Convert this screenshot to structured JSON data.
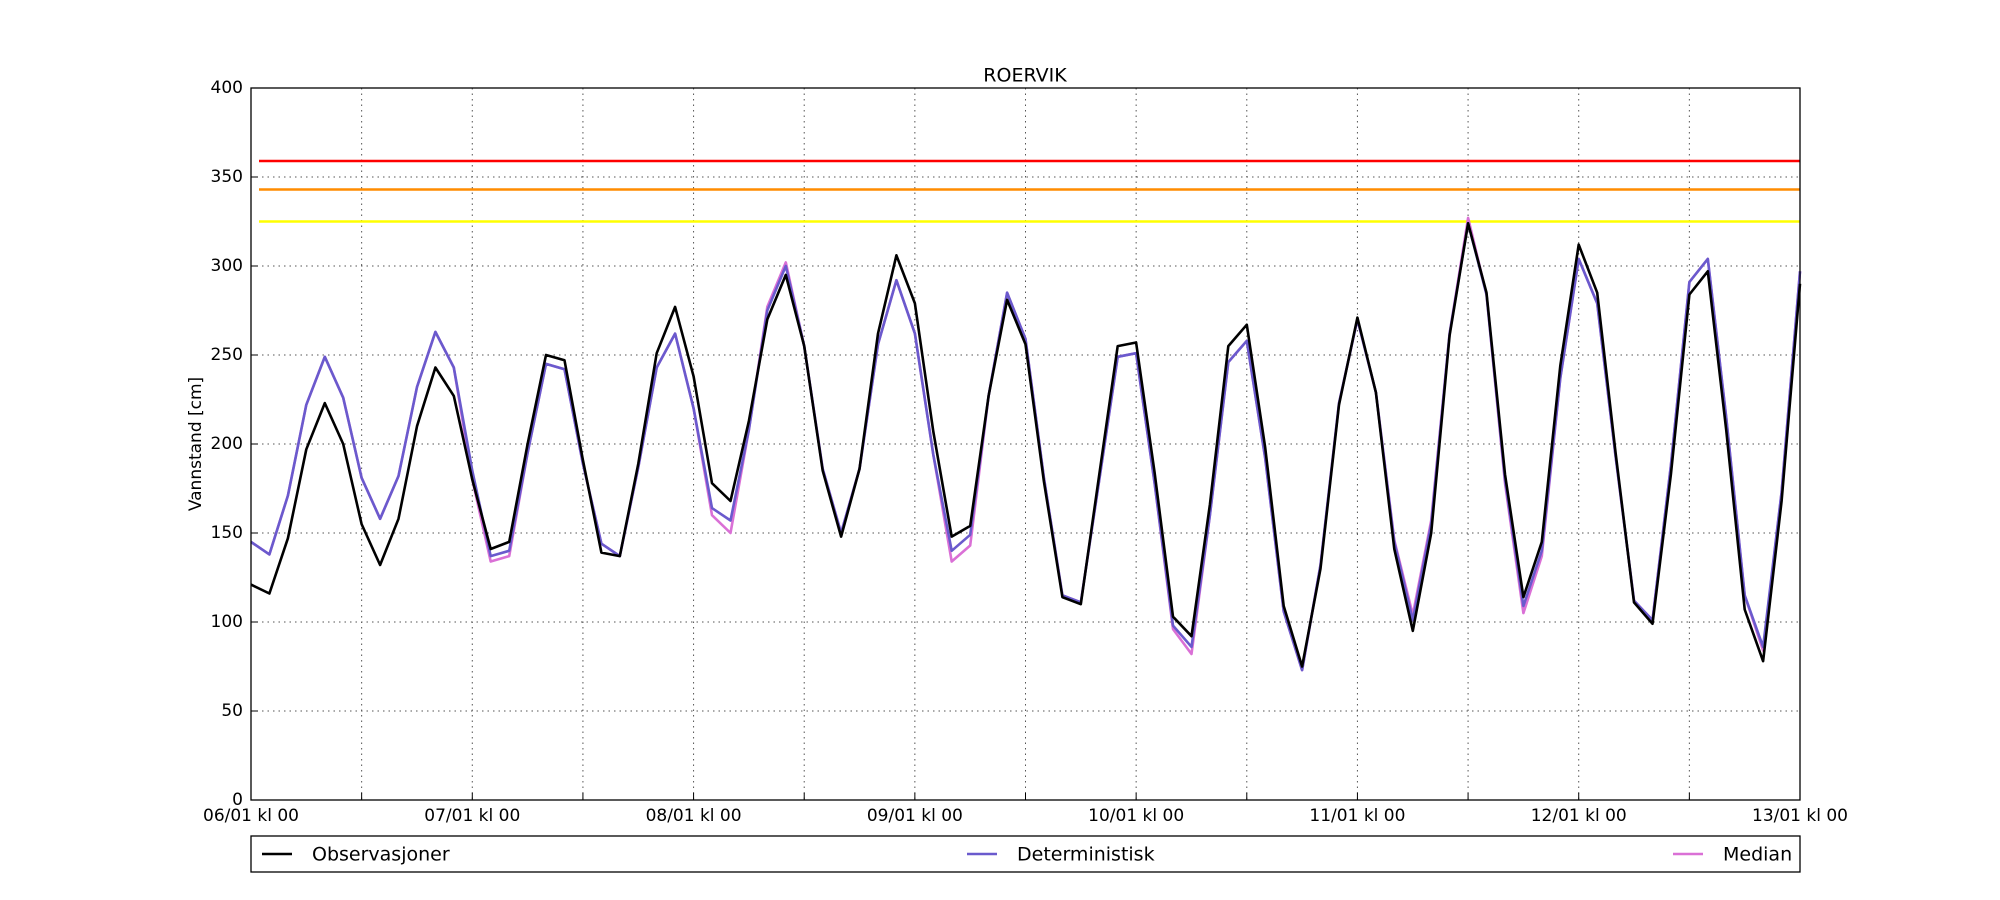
{
  "chart_data": {
    "type": "line",
    "title": "ROERVIK",
    "ylabel": "Vannstand [cm]",
    "x": [
      0,
      2,
      4,
      6,
      8,
      10,
      12,
      14,
      16,
      18,
      20,
      22,
      24,
      26,
      28,
      30,
      32,
      34,
      36,
      38,
      40,
      42,
      44,
      46,
      48,
      50,
      52,
      54,
      56,
      58,
      60,
      62,
      64,
      66,
      68,
      70,
      72,
      74,
      76,
      78,
      80,
      82,
      84,
      86,
      88,
      90,
      92,
      94,
      96,
      98,
      100,
      102,
      104,
      106,
      108,
      110,
      112,
      114,
      116,
      118,
      120,
      122,
      124,
      126,
      128,
      130,
      132,
      134,
      136,
      138,
      140,
      142,
      144,
      146,
      148,
      150,
      152,
      154,
      156,
      158,
      160,
      162,
      164,
      166,
      168
    ],
    "xlim": [
      0,
      168
    ],
    "xticks": [
      {
        "value": 0,
        "label": "06/01 kl 00"
      },
      {
        "value": 12,
        "label": null
      },
      {
        "value": 24,
        "label": "07/01 kl 00"
      },
      {
        "value": 36,
        "label": null
      },
      {
        "value": 48,
        "label": "08/01 kl 00"
      },
      {
        "value": 60,
        "label": null
      },
      {
        "value": 72,
        "label": "09/01 kl 00"
      },
      {
        "value": 84,
        "label": null
      },
      {
        "value": 96,
        "label": "10/01 kl 00"
      },
      {
        "value": 108,
        "label": null
      },
      {
        "value": 120,
        "label": "11/01 kl 00"
      },
      {
        "value": 132,
        "label": null
      },
      {
        "value": 144,
        "label": "12/01 kl 00"
      },
      {
        "value": 156,
        "label": null
      },
      {
        "value": 168,
        "label": "13/01 kl 00"
      }
    ],
    "ylim": [
      0,
      400
    ],
    "yticks": [
      0,
      50,
      100,
      150,
      200,
      250,
      300,
      350,
      400
    ],
    "grid": true,
    "reference_lines": [
      {
        "value": 359,
        "color": "#ff0000"
      },
      {
        "value": 343,
        "color": "#ff8c00"
      },
      {
        "value": 325,
        "color": "#ffff00"
      }
    ],
    "series": [
      {
        "name": "Observasjoner",
        "color": "#000000",
        "values": [
          121,
          116,
          147,
          197,
          223,
          200,
          155,
          132,
          158,
          210,
          243,
          227,
          180,
          141,
          145,
          200,
          250,
          247,
          191,
          139,
          137,
          189,
          251,
          277,
          238,
          178,
          168,
          213,
          270,
          295,
          255,
          185,
          148,
          186,
          262,
          306,
          279,
          207,
          148,
          154,
          227,
          281,
          256,
          179,
          114,
          110,
          183,
          255,
          257,
          184,
          103,
          92,
          166,
          255,
          267,
          198,
          109,
          75,
          130,
          222,
          271,
          229,
          141,
          95,
          150,
          261,
          324,
          285,
          183,
          114,
          145,
          244,
          312,
          285,
          195,
          111,
          99,
          183,
          284,
          297,
          208,
          107,
          78,
          168,
          290
        ]
      },
      {
        "name": "Deterministisk",
        "color": "#6a5acd",
        "values": [
          145,
          138,
          171,
          222,
          249,
          226,
          181,
          158,
          182,
          232,
          263,
          243,
          185,
          137,
          140,
          195,
          245,
          242,
          189,
          144,
          137,
          187,
          243,
          262,
          220,
          164,
          157,
          208,
          275,
          300,
          255,
          186,
          150,
          186,
          256,
          292,
          262,
          194,
          140,
          149,
          227,
          285,
          259,
          181,
          115,
          111,
          180,
          249,
          251,
          178,
          98,
          86,
          160,
          246,
          258,
          192,
          106,
          73,
          132,
          223,
          270,
          229,
          145,
          101,
          155,
          262,
          324,
          284,
          180,
          109,
          140,
          237,
          304,
          279,
          193,
          112,
          101,
          188,
          291,
          304,
          215,
          115,
          86,
          173,
          297
        ]
      },
      {
        "name": "Median",
        "color": "#da70d6",
        "values": [
          145,
          138,
          171,
          222,
          249,
          226,
          181,
          158,
          182,
          232,
          263,
          243,
          180,
          134,
          137,
          195,
          245,
          242,
          189,
          144,
          137,
          187,
          243,
          262,
          220,
          160,
          150,
          208,
          277,
          302,
          255,
          186,
          150,
          186,
          256,
          292,
          262,
          194,
          134,
          143,
          227,
          285,
          259,
          181,
          115,
          111,
          180,
          249,
          251,
          178,
          96,
          82,
          160,
          246,
          258,
          192,
          106,
          73,
          132,
          223,
          270,
          229,
          146,
          104,
          157,
          262,
          327,
          284,
          178,
          105,
          137,
          237,
          304,
          279,
          193,
          112,
          101,
          188,
          291,
          304,
          215,
          115,
          84,
          173,
          297
        ]
      }
    ]
  }
}
